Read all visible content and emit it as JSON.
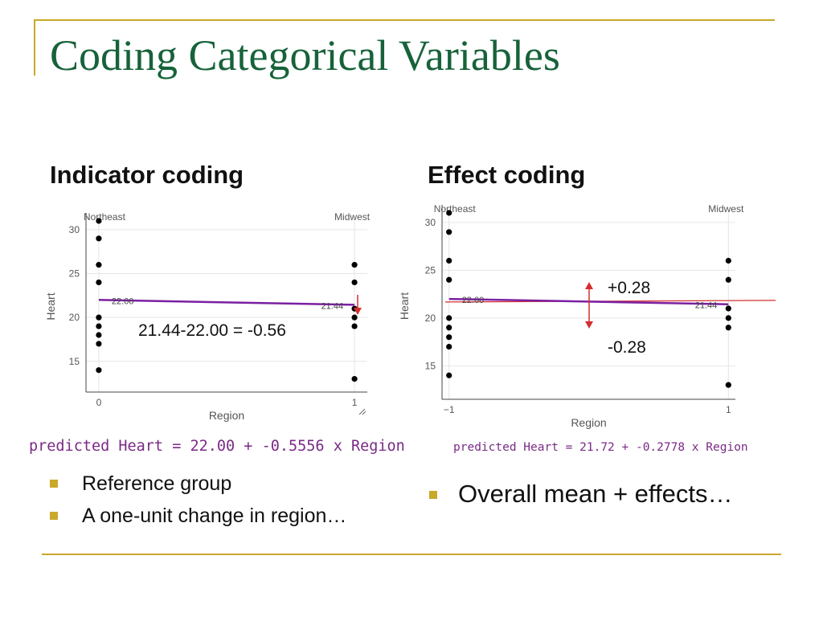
{
  "title": "Coding Categorical Variables",
  "left": {
    "heading": "Indicator coding",
    "annotation": "21.44-22.00 = -0.56",
    "formula": "predicted Heart = 22.00 + -0.5556 x Region",
    "bullets": [
      "Reference group",
      "A one-unit change in region…"
    ]
  },
  "right": {
    "heading": "Effect coding",
    "plus_label": "+0.28",
    "minus_label": "-0.28",
    "formula": "predicted Heart = 21.72 + -0.2778 x Region",
    "bullets": [
      "Overall mean + effects…"
    ]
  },
  "colors": {
    "title": "#17623a",
    "frame": "#c9a82a",
    "line": "#7b1fa2",
    "arrow": "#d32f2f",
    "formula": "#7a2a86"
  },
  "chart_data": [
    {
      "type": "scatter",
      "title": "",
      "xlabel": "Region",
      "ylabel": "Heart",
      "xlim": [
        -0.05,
        1.05
      ],
      "ylim": [
        11.5,
        31
      ],
      "xticks": [
        0,
        1
      ],
      "xtick_labels": [
        "0",
        "1"
      ],
      "yticks": [
        15,
        20,
        25,
        30
      ],
      "top_labels": [
        {
          "x": 0,
          "text": "Northeast"
        },
        {
          "x": 1,
          "text": "Midwest"
        }
      ],
      "points": [
        {
          "x": 0,
          "y": 31
        },
        {
          "x": 0,
          "y": 29
        },
        {
          "x": 0,
          "y": 26
        },
        {
          "x": 0,
          "y": 24
        },
        {
          "x": 0,
          "y": 20
        },
        {
          "x": 0,
          "y": 19
        },
        {
          "x": 0,
          "y": 18
        },
        {
          "x": 0,
          "y": 17
        },
        {
          "x": 0,
          "y": 14
        },
        {
          "x": 1,
          "y": 26
        },
        {
          "x": 1,
          "y": 24
        },
        {
          "x": 1,
          "y": 21
        },
        {
          "x": 1,
          "y": 20
        },
        {
          "x": 1,
          "y": 19
        },
        {
          "x": 1,
          "y": 13
        }
      ],
      "fit_line": {
        "x": [
          0,
          1
        ],
        "y": [
          22.0,
          21.44
        ]
      },
      "value_labels": [
        {
          "x": 0,
          "y": 22.0,
          "text": "22.00"
        },
        {
          "x": 1,
          "y": 21.44,
          "text": "21.44"
        }
      ]
    },
    {
      "type": "scatter",
      "title": "",
      "xlabel": "Region",
      "ylabel": "Heart",
      "xlim": [
        -1.05,
        1.05
      ],
      "ylim": [
        11.5,
        31
      ],
      "xticks": [
        -1,
        1
      ],
      "xtick_labels": [
        "−1",
        "1"
      ],
      "yticks": [
        15,
        20,
        25,
        30
      ],
      "top_labels": [
        {
          "x": -1,
          "text": "Northeast"
        },
        {
          "x": 1,
          "text": "Midwest"
        }
      ],
      "points": [
        {
          "x": -1,
          "y": 31
        },
        {
          "x": -1,
          "y": 29
        },
        {
          "x": -1,
          "y": 26
        },
        {
          "x": -1,
          "y": 24
        },
        {
          "x": -1,
          "y": 20
        },
        {
          "x": -1,
          "y": 19
        },
        {
          "x": -1,
          "y": 18
        },
        {
          "x": -1,
          "y": 17
        },
        {
          "x": -1,
          "y": 14
        },
        {
          "x": 1,
          "y": 26
        },
        {
          "x": 1,
          "y": 24
        },
        {
          "x": 1,
          "y": 21
        },
        {
          "x": 1,
          "y": 20
        },
        {
          "x": 1,
          "y": 19
        },
        {
          "x": 1,
          "y": 13
        }
      ],
      "fit_line": {
        "x": [
          -1,
          1
        ],
        "y": [
          22.0,
          21.44
        ]
      },
      "mean_line": {
        "y": 21.72
      },
      "value_labels": [
        {
          "x": -1,
          "y": 22.0,
          "text": "22.00"
        },
        {
          "x": 1,
          "y": 21.44,
          "text": "21.44"
        }
      ]
    }
  ]
}
